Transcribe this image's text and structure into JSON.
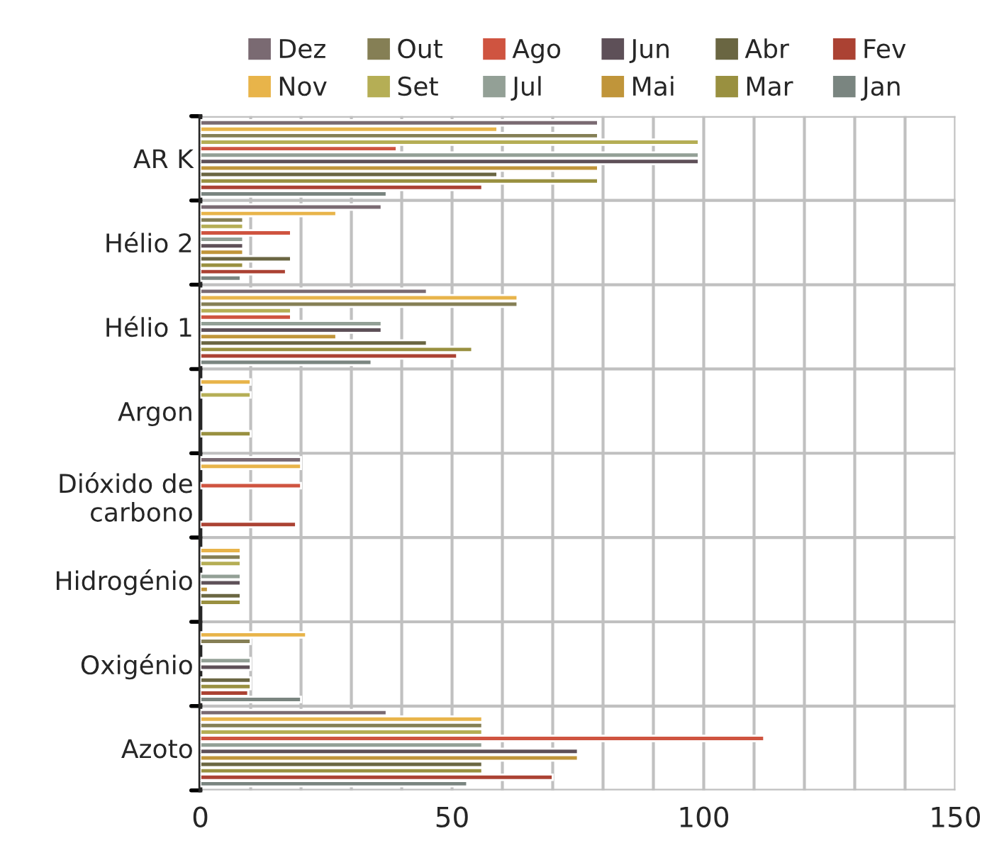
{
  "chart_data": {
    "type": "bar",
    "orientation": "horizontal",
    "categories": [
      "AR K",
      "Hélio 2",
      "Hélio 1",
      "Argon",
      "Dióxido de carbono",
      "Hidrogénio",
      "Oxigénio",
      "Azoto"
    ],
    "series": [
      {
        "name": "Dez",
        "color": "#7a6a72",
        "values": [
          79,
          36,
          45,
          null,
          20,
          null,
          null,
          37
        ]
      },
      {
        "name": "Nov",
        "color": "#e8b44a",
        "values": [
          59,
          27,
          63,
          10,
          20,
          8,
          21,
          56
        ]
      },
      {
        "name": "Out",
        "color": "#857f55",
        "values": [
          79,
          8.5,
          63,
          null,
          null,
          8,
          10,
          56
        ]
      },
      {
        "name": "Set",
        "color": "#b5ae55",
        "values": [
          99,
          8.5,
          18,
          10,
          null,
          8,
          null,
          56
        ]
      },
      {
        "name": "Ago",
        "color": "#cf5440",
        "values": [
          39,
          18,
          18,
          null,
          20,
          null,
          null,
          112
        ]
      },
      {
        "name": "Jul",
        "color": "#93a096",
        "values": [
          99,
          8.5,
          36,
          null,
          null,
          8,
          10,
          56
        ]
      },
      {
        "name": "Jun",
        "color": "#5e5058",
        "values": [
          99,
          8.5,
          36,
          null,
          null,
          8,
          10,
          75
        ]
      },
      {
        "name": "Mai",
        "color": "#c0953a",
        "values": [
          79,
          8.5,
          27,
          null,
          null,
          1.5,
          null,
          75
        ]
      },
      {
        "name": "Abr",
        "color": "#6a6642",
        "values": [
          59,
          18,
          45,
          null,
          null,
          8,
          10,
          56
        ]
      },
      {
        "name": "Mar",
        "color": "#999040",
        "values": [
          79,
          8.5,
          54,
          10,
          null,
          8,
          10,
          56
        ]
      },
      {
        "name": "Fev",
        "color": "#ab4233",
        "values": [
          56,
          17,
          51,
          null,
          19,
          null,
          9.5,
          70
        ]
      },
      {
        "name": "Jan",
        "color": "#7a8580",
        "values": [
          37,
          8,
          34,
          null,
          null,
          null,
          20,
          53
        ]
      }
    ],
    "xlim": [
      0,
      150
    ],
    "xticks": [
      0,
      {
        "value": 10,
        "label": null
      },
      {
        "value": 20,
        "label": null
      },
      {
        "value": 30,
        "label": null
      },
      {
        "value": 40,
        "label": null
      },
      50,
      {
        "value": 60,
        "label": null
      },
      {
        "value": 70,
        "label": null
      },
      {
        "value": 80,
        "label": null
      },
      {
        "value": 90,
        "label": null
      },
      100,
      {
        "value": 110,
        "label": null
      },
      {
        "value": 120,
        "label": null
      },
      {
        "value": 130,
        "label": null
      },
      {
        "value": 140,
        "label": null
      },
      150
    ],
    "grid": true,
    "legend": "top"
  }
}
